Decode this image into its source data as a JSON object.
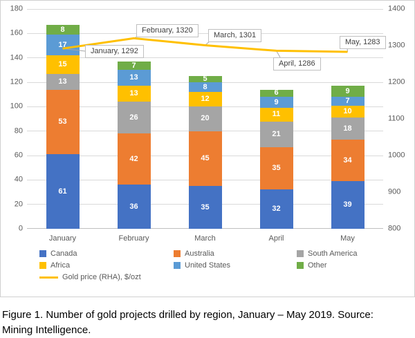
{
  "caption": "Figure 1. Number of gold projects drilled by region, January – May 2019. Source: Mining Intelligence.",
  "chart_data": {
    "type": "bar",
    "subtype": "stacked-column-with-line",
    "title": "",
    "xlabel": "",
    "ylabel": "",
    "grid": true,
    "legend_position": "bottom",
    "categories": [
      "January",
      "February",
      "March",
      "April",
      "May"
    ],
    "series": [
      {
        "name": "Canada",
        "color": "#4472C4",
        "values": [
          61,
          36,
          35,
          32,
          39
        ]
      },
      {
        "name": "Australia",
        "color": "#ED7D31",
        "values": [
          53,
          42,
          45,
          35,
          34
        ]
      },
      {
        "name": "South America",
        "color": "#A5A5A5",
        "values": [
          13,
          26,
          20,
          21,
          18
        ]
      },
      {
        "name": "Africa",
        "color": "#FFC000",
        "values": [
          15,
          13,
          12,
          11,
          10
        ]
      },
      {
        "name": "United States",
        "color": "#5B9BD5",
        "values": [
          17,
          13,
          8,
          9,
          7
        ]
      },
      {
        "name": "Other",
        "color": "#70AD47",
        "values": [
          8,
          7,
          5,
          6,
          9
        ]
      }
    ],
    "line_series": {
      "name": "Gold price (RHA), $/ozt",
      "color": "#FFC000",
      "values": [
        1292,
        1320,
        1301,
        1286,
        1283
      ]
    },
    "left_axis": {
      "min": 0,
      "max": 180,
      "step": 20
    },
    "right_axis": {
      "min": 800,
      "max": 1400,
      "step": 100
    },
    "annotations": [
      {
        "label": "January, 1292"
      },
      {
        "label": "February, 1320"
      },
      {
        "label": "March, 1301"
      },
      {
        "label": "April, 1286"
      },
      {
        "label": "May, 1283"
      }
    ]
  }
}
